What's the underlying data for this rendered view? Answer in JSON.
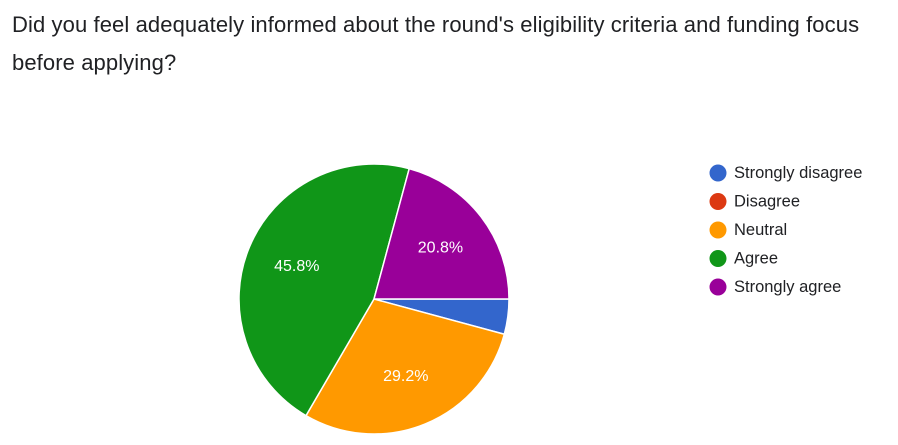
{
  "question": {
    "title": "Did you feel adequately informed about the round's eligibility criteria and funding focus before applying?"
  },
  "chart_data": {
    "type": "pie",
    "title": "Did you feel adequately informed about the round's eligibility criteria and funding focus before applying?",
    "categories": [
      "Strongly disagree",
      "Disagree",
      "Neutral",
      "Agree",
      "Strongly agree"
    ],
    "values": [
      4.2,
      0,
      29.2,
      45.8,
      20.8
    ],
    "value_labels": [
      "",
      "",
      "29.2%",
      "45.8%",
      "20.8%"
    ],
    "colors": [
      "#3366cc",
      "#dc3912",
      "#ff9900",
      "#109618",
      "#990099"
    ],
    "legend_position": "right",
    "slice_border_color": "#ffffff",
    "label_color": "#ffffff"
  }
}
